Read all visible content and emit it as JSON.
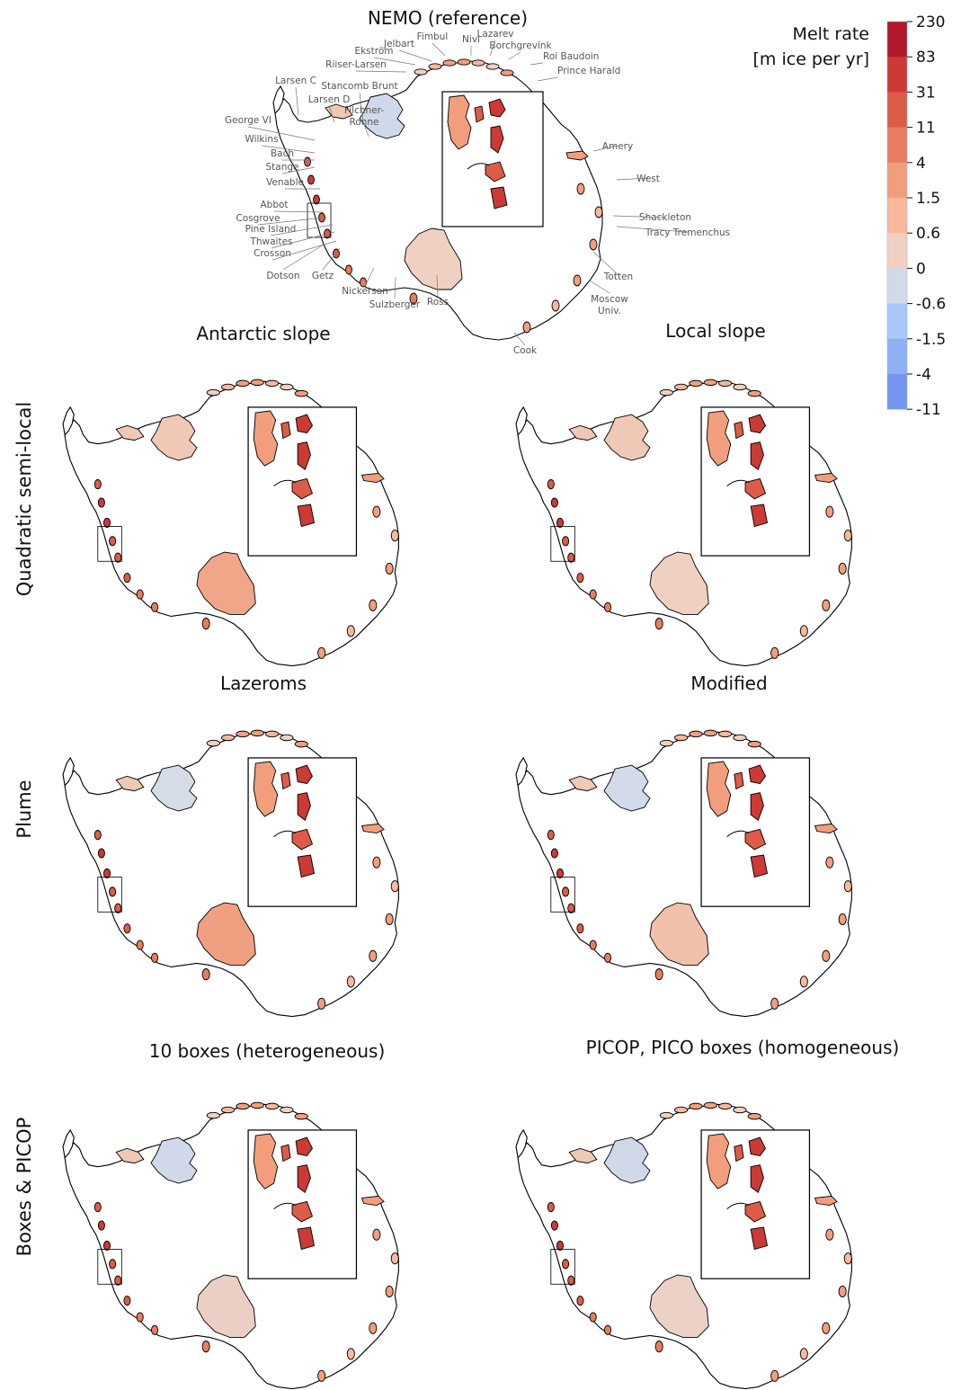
{
  "figure": {
    "top_panel": {
      "title": "NEMO (reference)",
      "labels": [
        "Fimbul",
        "Nivl",
        "Lazarev",
        "Jelbart",
        "Borchgrevink",
        "Ekström",
        "Roi Baudoin",
        "Riiser-Larsen",
        "Prince Harald",
        "Larsen C",
        "Stancomb Brunt",
        "Larsen D",
        "Filchner-\nRonne",
        "George VI",
        "Wilkins",
        "Bach",
        "Stange",
        "Venable",
        "Abbot",
        "Cosgrove",
        "Pine Island",
        "Thwaites",
        "Crosson",
        "Dotson",
        "Getz",
        "Nickerson",
        "Sulzberger",
        "Ross",
        "Cook",
        "Totten",
        "Moscow\nUniv.",
        "Amery",
        "West",
        "Shackleton",
        "Tracy Tremenchus"
      ]
    },
    "rows": [
      {
        "label": "Quadratic semi-local",
        "panels": [
          {
            "title": "Antarctic slope",
            "ross": "#f2a689",
            "fris": "#f0c8b6"
          },
          {
            "title": "Local slope",
            "ross": "#f0d0c0",
            "fris": "#f0c8b6"
          }
        ]
      },
      {
        "label": "Plume",
        "panels": [
          {
            "title": "Lazeroms",
            "ross": "#f0a080",
            "fris": "#d6dbe8"
          },
          {
            "title": "Modified",
            "ross": "#f0c0aa",
            "fris": "#d3dbea"
          }
        ]
      },
      {
        "label": "Boxes & PICOP",
        "panels": [
          {
            "title": "10 boxes (heterogeneous)",
            "ross": "#eccfc4",
            "fris": "#d0d8ea"
          },
          {
            "title": "PICOP, PICO boxes (homogeneous)",
            "ross": "#ecd2c6",
            "fris": "#d0d8ea"
          }
        ]
      }
    ],
    "colorbar": {
      "title_line1": "Melt rate",
      "title_line2": "[m ice per yr]",
      "ticks": [
        "230",
        "83",
        "31",
        "11",
        "4",
        "1.5",
        "0.6",
        "0",
        "-0.6",
        "-1.5",
        "-4",
        "-11"
      ],
      "colors": [
        "#b2182b",
        "#cc3a36",
        "#dd5c48",
        "#e97c5f",
        "#f29e7d",
        "#f7b89b",
        "#f0d0c0",
        "#d2daea",
        "#a9c7f9",
        "#8fb0f5",
        "#7596ee"
      ]
    }
  }
}
